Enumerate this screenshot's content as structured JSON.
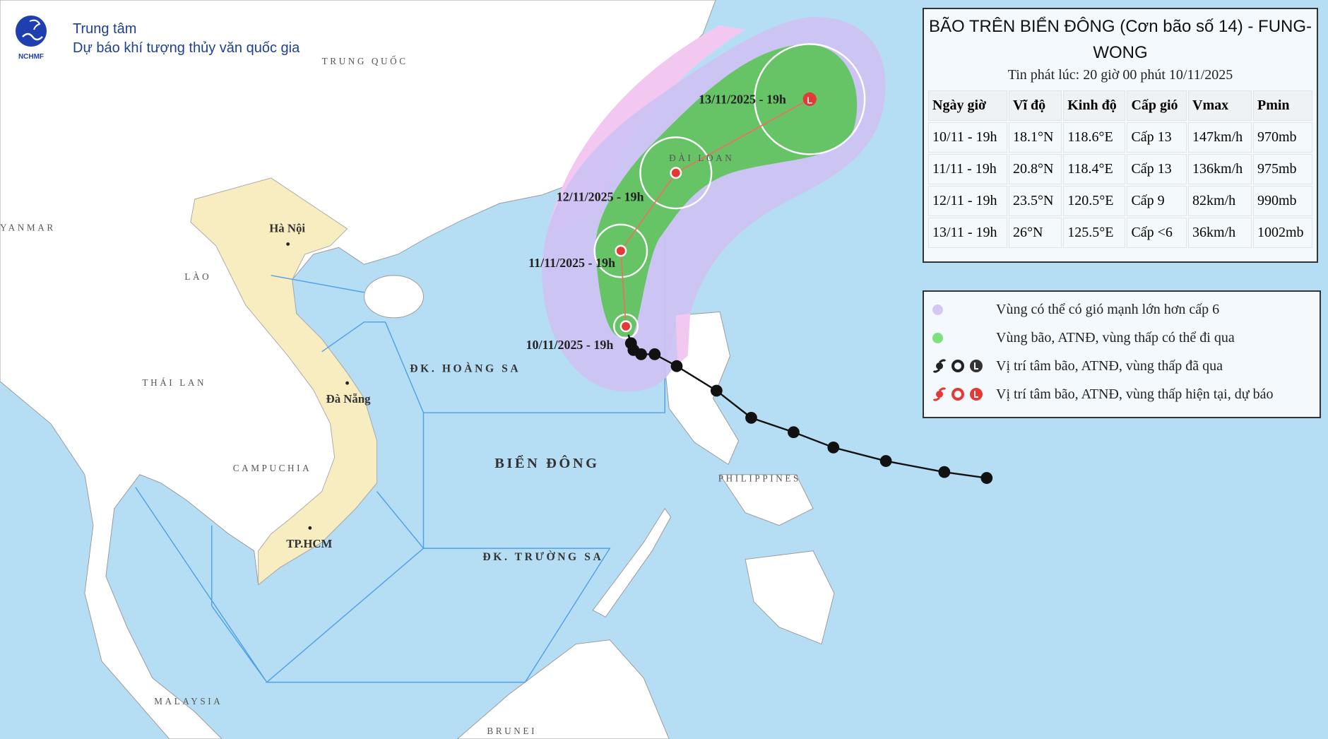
{
  "header": {
    "logo_text": "NCHMF",
    "org_line1": "Trung tâm",
    "org_line2": "Dự báo khí tượng thủy văn quốc gia"
  },
  "info": {
    "title": "BÃO TRÊN BIỂN ĐÔNG (Cơn bão số 14) - FUNG-WONG",
    "issued": "Tin phát lúc: 20 giờ 00 phút 10/11/2025",
    "columns": [
      "Ngày giờ",
      "Vĩ độ",
      "Kinh độ",
      "Cấp gió",
      "Vmax",
      "Pmin"
    ],
    "rows": [
      [
        "10/11 - 19h",
        "18.1°N",
        "118.6°E",
        "Cấp 13",
        "147km/h",
        "970mb"
      ],
      [
        "11/11 - 19h",
        "20.8°N",
        "118.4°E",
        "Cấp 13",
        "136km/h",
        "975mb"
      ],
      [
        "12/11 - 19h",
        "23.5°N",
        "120.5°E",
        "Cấp 9",
        "82km/h",
        "990mb"
      ],
      [
        "13/11 - 19h",
        "26°N",
        "125.5°E",
        "Cấp <6",
        "36km/h",
        "1002mb"
      ]
    ]
  },
  "legend": {
    "items": [
      {
        "label": "Vùng có thể có gió mạnh lớn hơn cấp 6",
        "color": "#d4c8f2"
      },
      {
        "label": "Vùng bão, ATNĐ, vùng thấp có thể đi qua",
        "color": "#7ee07e"
      },
      {
        "label": "Vị trí tâm bão, ATNĐ, vùng thấp đã qua",
        "color": "#222222"
      },
      {
        "label": "Vị trí tâm bão, ATNĐ, vùng thấp hiện tại, dự báo",
        "color": "#e53935"
      }
    ]
  },
  "map": {
    "countries": {
      "china": "TRUNG QUỐC",
      "myanmar": "YANMAR",
      "laos": "LÀO",
      "thailand": "THÁI LAN",
      "cambodia": "CAMPUCHIA",
      "malaysia": "MALAYSIA",
      "brunei": "BRUNEI",
      "philippines": "PHILIPPINES",
      "taiwan": "ĐÀI LOAN"
    },
    "cities": {
      "hanoi": "Hà Nội",
      "danang": "Đà Nẵng",
      "hcm": "TP.HCM"
    },
    "seas": {
      "paracel": "ĐK. HOÀNG SA",
      "east_sea": "BIỂN ĐÔNG",
      "spratly": "ĐK. TRƯỜNG SA"
    },
    "forecast_points": [
      {
        "label": "10/11/2025 - 19h",
        "type": "storm"
      },
      {
        "label": "11/11/2025 - 19h",
        "type": "storm"
      },
      {
        "label": "12/11/2025 - 19h",
        "type": "storm"
      },
      {
        "label": "13/11/2025 - 19h",
        "type": "low"
      }
    ],
    "colors": {
      "ocean": "#b5def5",
      "land": "#ffffff",
      "vietnam": "#f7edc0",
      "wind_zone": "#cdc3f2",
      "cone": "#66c466",
      "track_past": "#111111",
      "track_forecast": "#e53935"
    }
  }
}
